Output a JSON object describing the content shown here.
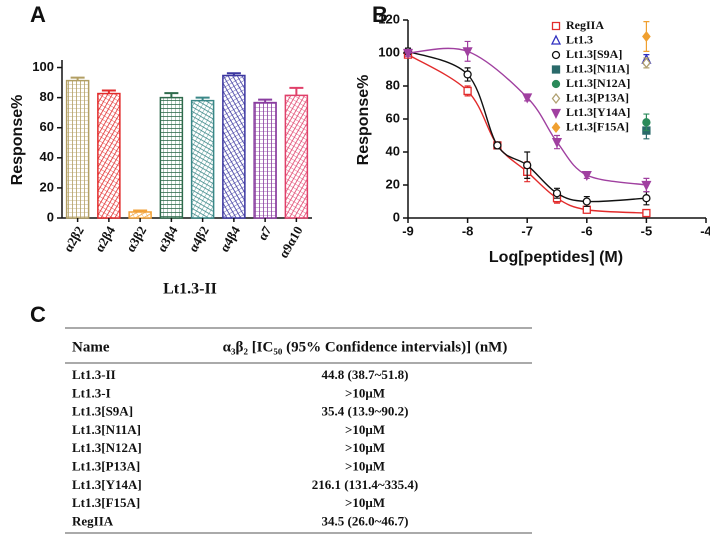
{
  "chart_data": [
    {
      "type": "bar",
      "panel": "A",
      "ylabel": "Response%",
      "xlabel": "Lt1.3-II",
      "categories": [
        "α2β2",
        "α2β4",
        "α3β2",
        "α3β4",
        "α4β2",
        "α4β4",
        "α7",
        "α9α10"
      ],
      "values": [
        91.3,
        82.7,
        4,
        80,
        78,
        94.7,
        76.7,
        81.5
      ],
      "errors": [
        2,
        2,
        1,
        3,
        2,
        1.5,
        2,
        5
      ],
      "colors": [
        "#b29f63",
        "#e22b2b",
        "#f2a23a",
        "#2f6b4c",
        "#3a8787",
        "#3b36a0",
        "#8a3da0",
        "#e0406a"
      ],
      "ylim": [
        0,
        105
      ],
      "yticks": [
        0,
        20,
        40,
        60,
        80,
        100
      ]
    },
    {
      "type": "scatter",
      "panel": "B",
      "ylabel": "Response%",
      "xlabel": "Log[peptides] (M)",
      "xlim": [
        -9,
        -4
      ],
      "xticks": [
        -9,
        -8,
        -7,
        -6,
        -5,
        -4
      ],
      "ylim": [
        0,
        120
      ],
      "yticks": [
        0,
        20,
        40,
        60,
        80,
        100,
        120
      ],
      "legend": "upper right",
      "series": [
        {
          "name": "RegIIA",
          "color": "#e22b2b",
          "marker": "square-open",
          "curve": true,
          "x": [
            -9,
            -8,
            -7.5,
            -7,
            -6.5,
            -6,
            -5
          ],
          "values": [
            99,
            77,
            44,
            28,
            12,
            5,
            3
          ],
          "errors": [
            2,
            3,
            2,
            6,
            3,
            2,
            1
          ]
        },
        {
          "name": "Lt1.3",
          "color": "#3030c0",
          "marker": "triangle-open",
          "curve": false,
          "x": [
            -5
          ],
          "values": [
            96
          ],
          "errors": [
            3
          ]
        },
        {
          "name": "Lt1.3[S9A]",
          "color": "#111111",
          "marker": "circle-open",
          "curve": true,
          "x": [
            -9,
            -8,
            -7.5,
            -7,
            -6.5,
            -6,
            -5
          ],
          "values": [
            101,
            87,
            44,
            32,
            15,
            10,
            12
          ],
          "errors": [
            2,
            4,
            2,
            8,
            3,
            3,
            4
          ]
        },
        {
          "name": "Lt1.3[N11A]",
          "color": "#2a6a6a",
          "marker": "square",
          "curve": false,
          "x": [
            -5
          ],
          "values": [
            53
          ],
          "errors": [
            5
          ]
        },
        {
          "name": "Lt1.3[N12A]",
          "color": "#2a8a5a",
          "marker": "circle",
          "curve": false,
          "x": [
            -5
          ],
          "values": [
            58
          ],
          "errors": [
            5
          ]
        },
        {
          "name": "Lt1.3[P13A]",
          "color": "#b0a070",
          "marker": "diamond-open",
          "curve": false,
          "x": [
            -5
          ],
          "values": [
            94
          ],
          "errors": [
            3
          ]
        },
        {
          "name": "Lt1.3[Y14A]",
          "color": "#a040a0",
          "marker": "triangle-down",
          "curve": true,
          "x": [
            -9,
            -8,
            -7,
            -6.5,
            -6,
            -5
          ],
          "values": [
            100,
            101,
            73,
            46,
            26,
            20
          ],
          "errors": [
            2,
            6,
            2,
            4,
            2,
            4
          ]
        },
        {
          "name": "Lt1.3[F15A]",
          "color": "#f0a030",
          "marker": "diamond",
          "curve": false,
          "x": [
            -5
          ],
          "values": [
            110
          ],
          "errors": [
            9
          ]
        }
      ]
    }
  ],
  "table": {
    "panel": "C",
    "columns": [
      "Name",
      "α₃β₂ [IC₅₀ (95% Confidence intervials)] (nM)"
    ],
    "rows": [
      [
        "Lt1.3-II",
        "44.8 (38.7~51.8)"
      ],
      [
        "Lt1.3-I",
        ">10μM"
      ],
      [
        "Lt1.3[S9A]",
        "35.4 (13.9~90.2)"
      ],
      [
        "Lt1.3[N11A]",
        ">10μM"
      ],
      [
        "Lt1.3[N12A]",
        ">10μM"
      ],
      [
        "Lt1.3[P13A]",
        ">10μM"
      ],
      [
        "Lt1.3[Y14A]",
        "216.1 (131.4~335.4)"
      ],
      [
        "Lt1.3[F15A]",
        ">10μM"
      ],
      [
        "RegIIA",
        "34.5 (26.0~46.7)"
      ]
    ]
  }
}
